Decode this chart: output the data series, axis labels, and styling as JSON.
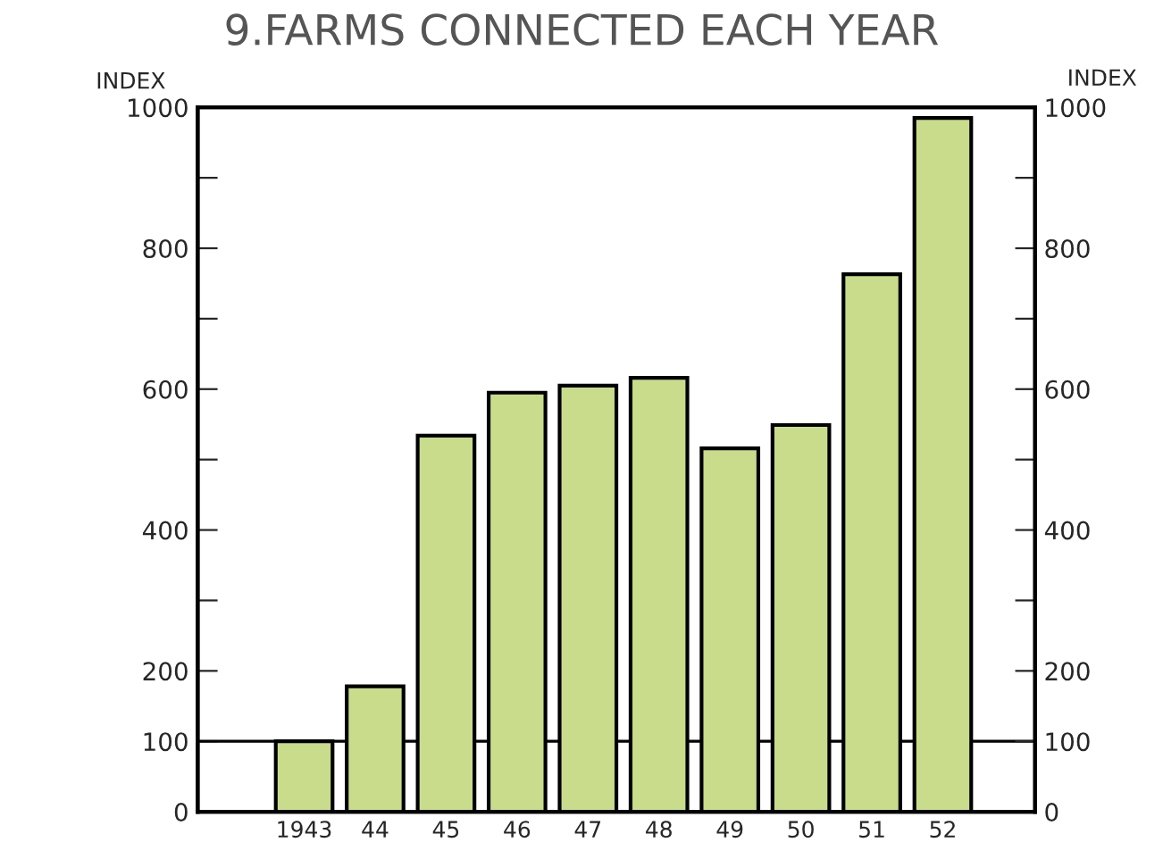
{
  "chart_data": {
    "type": "bar",
    "title": "9.FARMS CONNECTED EACH YEAR",
    "ylabel": "INDEX",
    "y2label": "INDEX",
    "categories": [
      "1943",
      "44",
      "45",
      "46",
      "47",
      "48",
      "49",
      "50",
      "51",
      "52"
    ],
    "values": [
      100,
      178,
      534,
      595,
      605,
      616,
      516,
      549,
      763,
      985
    ],
    "color": "#c8dc8c",
    "ylim": [
      0,
      1000
    ],
    "yticks": [
      0,
      100,
      200,
      {
        "value": 300,
        "label": null
      },
      400,
      {
        "value": 500,
        "label": null
      },
      600,
      {
        "value": 700,
        "label": null
      },
      800,
      {
        "value": 900,
        "label": null
      },
      1000
    ],
    "y2lim": [
      0,
      1000
    ],
    "y2ticks": [
      0,
      100,
      200,
      {
        "value": 300,
        "label": null
      },
      400,
      {
        "value": 500,
        "label": null
      },
      600,
      {
        "value": 700,
        "label": null
      },
      800,
      {
        "value": 900,
        "label": null
      },
      1000
    ],
    "ref_lines": [
      {
        "axis": "y",
        "value": 100,
        "color": "#000000"
      }
    ],
    "grid": false,
    "legend": false
  }
}
